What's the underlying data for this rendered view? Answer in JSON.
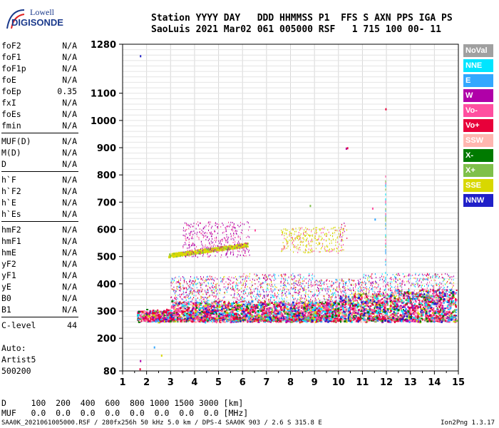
{
  "logo": {
    "line1": "Lowell",
    "line2": "DIGISONDE"
  },
  "header": {
    "line1": "Station YYYY DAY   DDD HHMMSS P1  FFS S AXN PPS IGA PS",
    "line2": "SaoLuis 2021 Mar02 061 005000 RSF   1 715 100 00- 11"
  },
  "params_groups": [
    [
      {
        "k": "foF2",
        "v": "N/A"
      },
      {
        "k": "foF1",
        "v": "N/A"
      },
      {
        "k": "foF1p",
        "v": "N/A"
      },
      {
        "k": "foE",
        "v": "N/A"
      },
      {
        "k": "foEp",
        "v": "0.35"
      },
      {
        "k": "fxI",
        "v": "N/A"
      },
      {
        "k": "foEs",
        "v": "N/A"
      },
      {
        "k": "fmin",
        "v": "N/A"
      }
    ],
    [
      {
        "k": "MUF(D)",
        "v": "N/A"
      },
      {
        "k": "M(D)",
        "v": "N/A"
      },
      {
        "k": "D",
        "v": "N/A"
      }
    ],
    [
      {
        "k": "h`F",
        "v": "N/A"
      },
      {
        "k": "h`F2",
        "v": "N/A"
      },
      {
        "k": "h`E",
        "v": "N/A"
      },
      {
        "k": "h`Es",
        "v": "N/A"
      }
    ],
    [
      {
        "k": "hmF2",
        "v": "N/A"
      },
      {
        "k": "hmF1",
        "v": "N/A"
      },
      {
        "k": "hmE",
        "v": "N/A"
      },
      {
        "k": "yF2",
        "v": "N/A"
      },
      {
        "k": "yF1",
        "v": "N/A"
      },
      {
        "k": "yE",
        "v": "N/A"
      },
      {
        "k": "B0",
        "v": "N/A"
      },
      {
        "k": "B1",
        "v": "N/A"
      }
    ],
    [
      {
        "k": "C-level",
        "v": "44"
      }
    ]
  ],
  "auto": [
    "Auto:",
    "Artist5",
    "500200"
  ],
  "legend": [
    {
      "label": "NoVal",
      "color": "#a0a0a0"
    },
    {
      "label": "NNE",
      "color": "#00e5ff"
    },
    {
      "label": "E",
      "color": "#33a8ff"
    },
    {
      "label": "W",
      "color": "#b000a8"
    },
    {
      "label": "Vo-",
      "color": "#ff4fa0"
    },
    {
      "label": "Vo+",
      "color": "#e8003a"
    },
    {
      "label": "SSW",
      "color": "#ffb6b0"
    },
    {
      "label": "X-",
      "color": "#007a00"
    },
    {
      "label": "X+",
      "color": "#7fc04a"
    },
    {
      "label": "SSE",
      "color": "#d8d800"
    },
    {
      "label": "NNW",
      "color": "#2020c8"
    }
  ],
  "chart_data": {
    "type": "scatter",
    "xlabel": "",
    "ylabel": "",
    "xlim": [
      1,
      15
    ],
    "ylim": [
      80,
      1280
    ],
    "x_ticks": [
      1,
      2,
      3,
      4,
      5,
      6,
      7,
      8,
      9,
      10,
      11,
      12,
      13,
      14,
      15
    ],
    "y_ticks": [
      80,
      200,
      300,
      400,
      500,
      600,
      700,
      800,
      900,
      1000,
      1100,
      1280
    ]
  },
  "bottom": {
    "line1": "D     100  200  400  600  800 1000 1500 3000 [km]",
    "line2": "MUF   0.0  0.0  0.0  0.0  0.0  0.0  0.0  0.0 [MHz]"
  },
  "footer": "SAA0K_2021061005000.RSF / 280fx256h 50 kHz 5.0 km / DPS-4 SAA0K 903 / 2.6 S 315.8 E",
  "version": "Ion2Png 1.3.17"
}
